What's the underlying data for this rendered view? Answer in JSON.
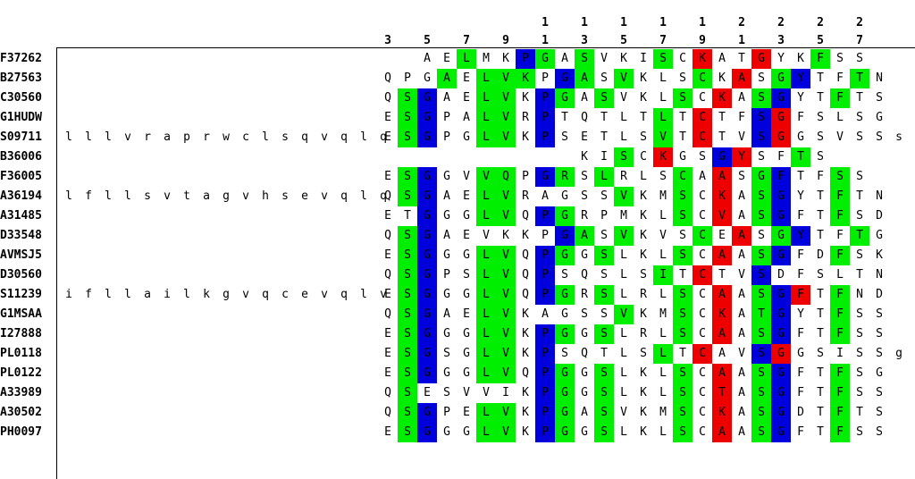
{
  "ruler": {
    "tens": [
      "",
      "",
      "",
      "",
      "1",
      "1",
      "1",
      "1",
      "1",
      "2",
      "2",
      "2",
      "2"
    ],
    "ones": [
      "3",
      "5",
      "7",
      "9",
      "1",
      "3",
      "5",
      "7",
      "9",
      "1",
      "3",
      "5",
      "7"
    ]
  },
  "colors": {
    "green": "#00ee00",
    "blue": "#0000dd",
    "red": "#ee0000"
  },
  "sequences": [
    {
      "id": "F37262",
      "prefix": "",
      "residues": "  AELMKPGASVKISCKATGYKFSS",
      "colors": "    g  bg g   g r  r  g  "
    },
    {
      "id": "B27563",
      "prefix": "",
      "residues": "QPGAELVKPGASVKLSCKASGYTFTN",
      "colors": "   g ggg bg g   g r gb  g  "
    },
    {
      "id": "C30560",
      "prefix": "",
      "residues": "QSGAELVKPGASVKLSCKASGYTFTS",
      "colors": " gb  gg bg g   g r gb  g  "
    },
    {
      "id": "G1HUDW",
      "prefix": "",
      "residues": "ESGPALVRPTQTLTLTCTFSGFSLSG",
      "colors": " gb  gg b     g r  br      "
    },
    {
      "id": "S09711",
      "prefix": "lllvraprwclsqvqlq",
      "residues": "ESGPGLVKPSETLSVTCTVSGGSVSSsg",
      "colors": " gb  gg b     g r  br       "
    },
    {
      "id": "B36006",
      "prefix": "",
      "residues": "          KISCKGSGYSFTS",
      "colors": "            g r  br  g  "
    },
    {
      "id": "F36005",
      "prefix": "",
      "residues": "ESGGVVQPGRSLRLSCAASGFTFSS",
      "colors": " gb  gg bg g   g r gb  g  "
    },
    {
      "id": "A36194",
      "prefix": "lfllsvtagvhsevqlq",
      "residues": "QSGAELVRAGSSVKMSCKASGYTFTN",
      "colors": " gb  gg     g  g r gb  g  "
    },
    {
      "id": "A31485",
      "prefix": "",
      "residues": "ETGGGLVQPGRPMKLSCVASGFTFSD",
      "colors": "  b  gg bg     g r gb  g  "
    },
    {
      "id": "D33548",
      "prefix": "",
      "residues": "QSGAEVKKPGASVKVSCEASGYTFTG",
      "colors": " gb      bg g   g r gb  g  "
    },
    {
      "id": "AVMSJ5",
      "prefix": "",
      "residues": "ESGGGLVQPGGSLKLSCAASGFDFSK",
      "colors": " gb  gg bg g   g r gb  g  "
    },
    {
      "id": "D30560",
      "prefix": "",
      "residues": "QSGPSLVQPSQSLSITCTVSDFSLTN",
      "colors": " gb  gg b     g r  b       "
    },
    {
      "id": "S11239",
      "prefix": "ifllailkgvqcevqlv",
      "residues": "ESGGGLVQPGRSLRLSCAASGFTFND",
      "colors": " gb  gg bg g   g r gbr g  "
    },
    {
      "id": "G1MSAA",
      "prefix": "",
      "residues": "QSGAELVKAGSSVKMSCKATGYTFSS",
      "colors": " gb  gg     g  g r gb  g  "
    },
    {
      "id": "I27888",
      "prefix": "",
      "residues": "ESGGGLVKPGGSLRLSCAASGFTFSS",
      "colors": " gb  gg bg g   g r gb  g  "
    },
    {
      "id": "PL0118",
      "prefix": "",
      "residues": "ESGSGLVKPSQTLSLTCAVSGGSISSgg",
      "colors": " gb  gg b     g r  br       "
    },
    {
      "id": "PL0122",
      "prefix": "",
      "residues": "ESGGGLVQPGGSLKLSCAASGFTFSG",
      "colors": " gb  gg bg g   g r gb  g  "
    },
    {
      "id": "A33989",
      "prefix": "",
      "residues": "QSESVVIKPGGSLKLSCTASGFTFSS",
      "colors": " g      bg g   g r gb  g  "
    },
    {
      "id": "A30502",
      "prefix": "",
      "residues": "QSGPELVKPGASVKMSCKASGDTFTS",
      "colors": " gb  gg bg g   g r gb  g  "
    },
    {
      "id": "PH0097",
      "prefix": "",
      "residues": "ESGGGLVKPGGSLKLSCAASGFTFSS",
      "colors": " gb  gg bg g   g r gb  g  "
    }
  ]
}
